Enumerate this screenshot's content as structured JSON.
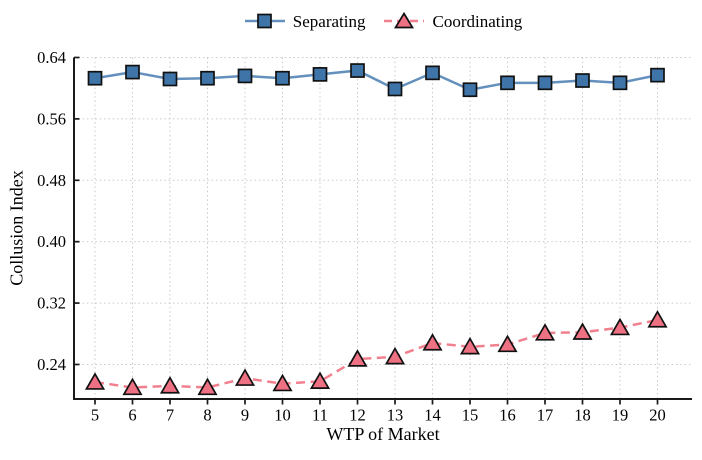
{
  "axes": {
    "xlabel": "WTP of Market",
    "ylabel": "Collusion Index"
  },
  "chart_data": {
    "type": "line",
    "title": "",
    "xlabel": "WTP of Market",
    "ylabel": "Collusion Index",
    "x": [
      5,
      6,
      7,
      8,
      9,
      10,
      11,
      12,
      13,
      14,
      15,
      16,
      17,
      18,
      19,
      20
    ],
    "series": [
      {
        "name": "Separating",
        "values": [
          0.613,
          0.621,
          0.612,
          0.613,
          0.616,
          0.613,
          0.618,
          0.623,
          0.599,
          0.62,
          0.598,
          0.607,
          0.607,
          0.61,
          0.607,
          0.617
        ],
        "marker": "square",
        "line_style": "solid",
        "line_color": "#6490bd",
        "marker_color": "#3f74a8",
        "marker_edge_color": "#111111"
      },
      {
        "name": "Coordinating",
        "values": [
          0.217,
          0.21,
          0.212,
          0.21,
          0.222,
          0.215,
          0.218,
          0.247,
          0.25,
          0.268,
          0.263,
          0.266,
          0.281,
          0.282,
          0.288,
          0.298
        ],
        "marker": "triangle",
        "line_style": "dashed",
        "line_color": "#f1808f",
        "marker_color": "#ee7183",
        "marker_edge_color": "#111111"
      }
    ],
    "xticks": [
      5,
      6,
      7,
      8,
      9,
      10,
      11,
      12,
      13,
      14,
      15,
      16,
      17,
      18,
      19,
      20
    ],
    "yticks": [
      0.24,
      0.32,
      0.4,
      0.48,
      0.56,
      0.64
    ],
    "ytick_labels": [
      "0.24",
      "0.32",
      "0.40",
      "0.48",
      "0.56",
      "0.64"
    ],
    "xlim": [
      4.44,
      20.92
    ],
    "ylim": [
      0.195,
      0.64
    ],
    "grid": true,
    "grid_style": "dotted",
    "grid_color": "#c9c9c9",
    "spine_color": "#1a1a1a",
    "legend_position": "top-center",
    "background": "#ffffff"
  }
}
